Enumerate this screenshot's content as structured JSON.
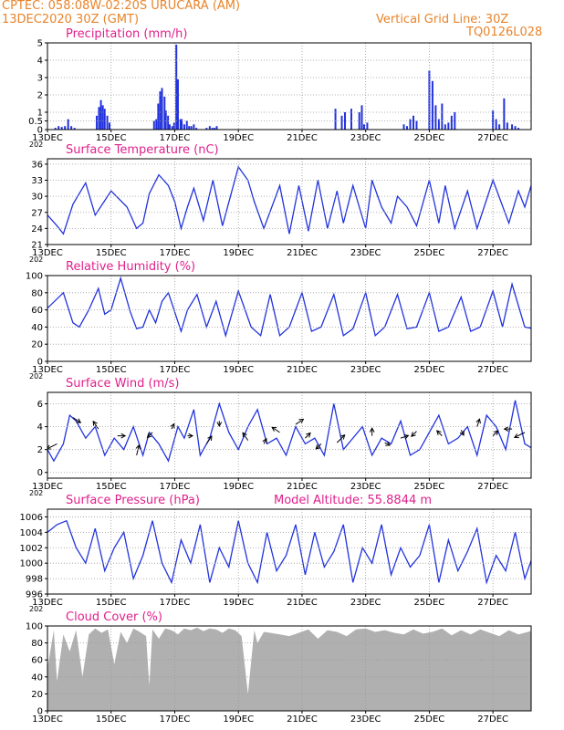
{
  "header": {
    "left_line1": "CPTEC:   058:08W-02:20S   URUCARA (AM)",
    "left_line2": "13DEC2020 30Z (GMT)",
    "right_line1": "Vertical Grid Line: 30Z",
    "right_line2": "TQ0126L028"
  },
  "colors": {
    "header": "#e8842a",
    "title": "#e0208c",
    "series": "#2233dd",
    "cloud": "#b0b0b0",
    "grid": "#999999"
  },
  "chart_data": [
    {
      "type": "bar",
      "title": "Precipitation (mm/h)",
      "ylim": [
        0,
        5
      ],
      "yticks": [
        "0",
        "0.5",
        "1",
        "2",
        "3",
        "4",
        "5"
      ],
      "ytick_values": [
        0,
        0.5,
        1,
        2,
        3,
        4,
        5
      ],
      "xticks": [
        "13DEC",
        "15DEC",
        "17DEC",
        "19DEC",
        "21DEC",
        "23DEC",
        "25DEC",
        "27DEC"
      ],
      "x_year_label": "202",
      "x": [
        0.25,
        0.35,
        0.45,
        0.55,
        0.65,
        0.75,
        0.85,
        1.55,
        1.62,
        1.68,
        1.74,
        1.8,
        1.88,
        1.95,
        3.35,
        3.42,
        3.48,
        3.54,
        3.6,
        3.68,
        3.72,
        3.79,
        3.84,
        3.92,
        3.98,
        4.05,
        4.1,
        4.18,
        4.22,
        4.3,
        4.38,
        4.45,
        4.52,
        4.6,
        4.68,
        5.0,
        5.1,
        5.18,
        5.25,
        5.32,
        9.05,
        9.25,
        9.35,
        9.55,
        9.8,
        9.88,
        9.95,
        10.05,
        11.2,
        11.3,
        11.4,
        11.5,
        11.6,
        12.0,
        12.1,
        12.2,
        12.3,
        12.4,
        12.5,
        12.6,
        12.7,
        12.8,
        14.0,
        14.1,
        14.2,
        14.35,
        14.45,
        14.6,
        14.7,
        14.8
      ],
      "values": [
        0.1,
        0.2,
        0.15,
        0.2,
        0.6,
        0.2,
        0.1,
        0.8,
        1.3,
        1.7,
        1.4,
        1.2,
        0.8,
        0.4,
        0.5,
        0.6,
        1.5,
        2.2,
        2.4,
        1.9,
        1.1,
        0.8,
        0.3,
        0.2,
        0.4,
        4.9,
        2.9,
        0.6,
        0.6,
        0.3,
        0.5,
        0.2,
        0.2,
        0.3,
        0.1,
        0.1,
        0.2,
        0.1,
        0.1,
        0.2,
        1.2,
        0.8,
        1.0,
        1.2,
        1.0,
        1.4,
        0.3,
        0.4,
        0.3,
        0.2,
        0.6,
        0.8,
        0.5,
        3.4,
        2.8,
        1.4,
        0.6,
        1.5,
        0.3,
        0.4,
        0.8,
        1.0,
        1.1,
        0.6,
        0.3,
        1.8,
        0.4,
        0.3,
        0.2,
        0.1
      ]
    },
    {
      "type": "line",
      "title": "Surface Temperature (nC)",
      "ylim": [
        21,
        37
      ],
      "yticks": [
        "21",
        "24",
        "27",
        "30",
        "33",
        "36"
      ],
      "ytick_values": [
        21,
        24,
        27,
        30,
        33,
        36
      ],
      "xticks": [
        "13DEC",
        "15DEC",
        "17DEC",
        "19DEC",
        "21DEC",
        "23DEC",
        "25DEC",
        "27DEC"
      ],
      "x_year_label": "202",
      "x": [
        0,
        0.3,
        0.5,
        0.8,
        1.2,
        1.5,
        2.0,
        2.5,
        2.8,
        3.0,
        3.2,
        3.5,
        3.8,
        4.0,
        4.2,
        4.4,
        4.6,
        4.9,
        5.2,
        5.5,
        6.0,
        6.3,
        6.5,
        6.8,
        7.3,
        7.6,
        7.9,
        8.2,
        8.5,
        8.8,
        9.1,
        9.3,
        9.6,
        10.0,
        10.2,
        10.5,
        10.8,
        11.0,
        11.3,
        11.6,
        12.0,
        12.3,
        12.5,
        12.8,
        13.2,
        13.5,
        14.0,
        14.5,
        14.8,
        15.0,
        15.2,
        15.5,
        15.8,
        16.0,
        16.2,
        16.5,
        16.8,
        17.0
      ],
      "values": [
        26.5,
        24.5,
        23,
        28.5,
        32.5,
        26.5,
        31,
        28,
        24,
        25,
        30.5,
        34,
        32,
        29,
        24,
        28,
        31.5,
        25.5,
        33,
        24.5,
        35.5,
        33,
        29,
        24,
        32,
        23,
        32,
        23.5,
        33,
        24,
        31,
        25,
        32,
        24,
        33,
        28,
        25,
        30,
        28,
        24.5,
        33,
        25,
        32,
        24,
        31,
        24,
        33,
        25,
        31,
        28,
        32,
        24,
        34,
        25,
        31,
        24,
        34.5,
        33
      ]
    },
    {
      "type": "line",
      "title": "Relative Humidity (%)",
      "ylim": [
        0,
        100
      ],
      "yticks": [
        "0",
        "20",
        "40",
        "60",
        "80",
        "100"
      ],
      "ytick_values": [
        0,
        20,
        40,
        60,
        80,
        100
      ],
      "xticks": [
        "13DEC",
        "15DEC",
        "17DEC",
        "19DEC",
        "21DEC",
        "23DEC",
        "25DEC",
        "27DEC"
      ],
      "x_year_label": "202",
      "x": [
        0,
        0.5,
        0.8,
        1.0,
        1.3,
        1.6,
        1.8,
        2.0,
        2.3,
        2.6,
        2.8,
        3.0,
        3.2,
        3.4,
        3.6,
        3.8,
        4.2,
        4.4,
        4.7,
        5.0,
        5.3,
        5.6,
        6.0,
        6.4,
        6.7,
        7.0,
        7.3,
        7.6,
        8.0,
        8.3,
        8.6,
        9.0,
        9.3,
        9.6,
        10.0,
        10.3,
        10.6,
        11.0,
        11.3,
        11.6,
        12.0,
        12.3,
        12.6,
        13.0,
        13.3,
        13.6,
        14.0,
        14.3,
        14.6,
        15.0,
        15.3,
        15.6,
        16.0,
        16.3,
        16.6,
        17.0
      ],
      "values": [
        62,
        80,
        45,
        40,
        60,
        85,
        55,
        60,
        97,
        58,
        38,
        40,
        60,
        45,
        70,
        80,
        35,
        60,
        78,
        40,
        70,
        30,
        82,
        40,
        30,
        78,
        30,
        40,
        80,
        35,
        40,
        78,
        30,
        38,
        80,
        30,
        40,
        78,
        38,
        40,
        80,
        35,
        40,
        75,
        35,
        40,
        82,
        40,
        90,
        40,
        38,
        60,
        70,
        35,
        60,
        35
      ]
    },
    {
      "type": "line",
      "title": "Surface Wind (m/s)",
      "ylim": [
        -0.5,
        7
      ],
      "yticks": [
        "0",
        "2",
        "4",
        "6"
      ],
      "ytick_values": [
        0,
        2,
        4,
        6
      ],
      "xticks": [
        "13DEC",
        "15DEC",
        "17DEC",
        "19DEC",
        "21DEC",
        "23DEC",
        "25DEC",
        "27DEC"
      ],
      "x_year_label": "202",
      "x": [
        0,
        0.2,
        0.5,
        0.7,
        0.9,
        1.2,
        1.5,
        1.8,
        2.1,
        2.4,
        2.7,
        3.0,
        3.2,
        3.5,
        3.8,
        4.1,
        4.3,
        4.6,
        4.8,
        5.1,
        5.4,
        5.7,
        6.0,
        6.3,
        6.6,
        6.9,
        7.2,
        7.5,
        7.8,
        8.1,
        8.4,
        8.7,
        9.0,
        9.3,
        9.6,
        9.9,
        10.2,
        10.5,
        10.8,
        11.1,
        11.4,
        11.7,
        12.0,
        12.3,
        12.6,
        12.9,
        13.2,
        13.5,
        13.8,
        14.1,
        14.4,
        14.7,
        15.0,
        15.3,
        15.6,
        15.9,
        16.2,
        16.5,
        16.8,
        17.0
      ],
      "values": [
        2,
        1,
        2.5,
        5,
        4.5,
        3,
        4,
        1.5,
        3,
        2,
        4,
        1.5,
        3.5,
        2.5,
        1,
        4,
        3,
        5.5,
        1.5,
        3,
        6,
        3.5,
        2,
        4,
        5.5,
        2.5,
        3,
        1.5,
        4,
        2.5,
        3,
        1.5,
        6,
        2,
        3,
        4,
        1.5,
        3,
        2.5,
        4.5,
        1.5,
        2,
        3.5,
        5,
        2.5,
        3,
        4,
        1.5,
        5,
        4,
        2,
        6.3,
        2.5,
        2,
        4,
        3,
        1.5,
        5.5,
        2,
        2
      ],
      "arrows": [
        [
          0.3,
          2.5,
          -0.4,
          -0.2
        ],
        [
          0.8,
          4.8,
          0.3,
          -0.2
        ],
        [
          1.6,
          3.8,
          -0.2,
          0.3
        ],
        [
          2.2,
          3.2,
          0.3,
          0
        ],
        [
          2.8,
          1.5,
          0.1,
          0.4
        ],
        [
          3.3,
          3.5,
          -0.2,
          -0.2
        ],
        [
          3.9,
          3.8,
          0.1,
          0.2
        ],
        [
          4.4,
          3.2,
          0.2,
          0
        ],
        [
          5.0,
          2.5,
          0.2,
          0.3
        ],
        [
          5.4,
          4.5,
          0,
          -0.2
        ],
        [
          6.3,
          2.8,
          -0.2,
          0.3
        ],
        [
          6.8,
          2.5,
          0.1,
          0.2
        ],
        [
          7.3,
          3.5,
          -0.3,
          0.2
        ],
        [
          7.8,
          4.2,
          0.3,
          0.2
        ],
        [
          8.1,
          3.0,
          0.2,
          0.2
        ],
        [
          8.6,
          2.5,
          -0.2,
          -0.2
        ],
        [
          9.1,
          2.6,
          0.3,
          0.3
        ],
        [
          10.2,
          3.2,
          0,
          0.3
        ],
        [
          10.6,
          2.6,
          0.2,
          -0.1
        ],
        [
          11.1,
          3.0,
          0.3,
          0.1
        ],
        [
          11.6,
          3.6,
          -0.2,
          -0.2
        ],
        [
          12.4,
          3.2,
          -0.2,
          0.2
        ],
        [
          13.0,
          3.7,
          0.1,
          -0.2
        ],
        [
          13.5,
          4.0,
          0.1,
          0.3
        ],
        [
          14.0,
          3.2,
          0.2,
          0.2
        ],
        [
          14.6,
          3.8,
          -0.3,
          0
        ],
        [
          15.0,
          3.5,
          -0.4,
          -0.2
        ],
        [
          15.6,
          3.6,
          0.3,
          0.2
        ],
        [
          16.4,
          2.8,
          -0.2,
          0.3
        ],
        [
          16.8,
          4.4,
          0.2,
          0.2
        ]
      ]
    },
    {
      "type": "line",
      "title": "Surface Pressure (hPa)",
      "annotation": "Model Altitude: 55.8844 m",
      "ylim": [
        996,
        1007
      ],
      "yticks": [
        "996",
        "998",
        "1000",
        "1002",
        "1004",
        "1006"
      ],
      "ytick_values": [
        996,
        998,
        1000,
        1002,
        1004,
        1006
      ],
      "xticks": [
        "13DEC",
        "15DEC",
        "17DEC",
        "19DEC",
        "21DEC",
        "23DEC",
        "25DEC",
        "27DEC"
      ],
      "x_year_label": "202",
      "x": [
        0,
        0.3,
        0.6,
        0.9,
        1.2,
        1.5,
        1.8,
        2.1,
        2.4,
        2.7,
        3.0,
        3.3,
        3.6,
        3.9,
        4.2,
        4.5,
        4.8,
        5.1,
        5.4,
        5.7,
        6.0,
        6.3,
        6.6,
        6.9,
        7.2,
        7.5,
        7.8,
        8.1,
        8.4,
        8.7,
        9.0,
        9.3,
        9.6,
        9.9,
        10.2,
        10.5,
        10.8,
        11.1,
        11.4,
        11.7,
        12.0,
        12.3,
        12.6,
        12.9,
        13.2,
        13.5,
        13.8,
        14.1,
        14.4,
        14.7,
        15.0,
        15.3,
        15.6,
        15.9,
        16.2,
        16.5,
        16.8,
        17.0
      ],
      "values": [
        1004,
        1005,
        1005.5,
        1002,
        1000,
        1004.5,
        999,
        1002,
        1004,
        998,
        1001,
        1005.5,
        1000,
        997.5,
        1003,
        1000,
        1005,
        997.5,
        1002,
        999.5,
        1005.5,
        1000,
        997.5,
        1004,
        999,
        1001,
        1005,
        998.5,
        1004,
        999.5,
        1001.5,
        1005,
        997.5,
        1002,
        1000,
        1005,
        998.5,
        1002,
        999.5,
        1001,
        1005,
        997.5,
        1003,
        999,
        1001.5,
        1004.5,
        997.5,
        1001,
        999,
        1004,
        998,
        1001.5,
        999.5,
        1003.5,
        996.5,
        1000.5,
        1004,
        998
      ]
    },
    {
      "type": "area",
      "title": "Cloud Cover (%)",
      "ylim": [
        0,
        100
      ],
      "yticks": [
        "0",
        "20",
        "40",
        "60",
        "80",
        "100"
      ],
      "ytick_values": [
        0,
        20,
        40,
        60,
        80,
        100
      ],
      "xticks": [
        "13DEC",
        "15DEC",
        "17DEC",
        "19DEC",
        "21DEC",
        "23DEC",
        "25DEC",
        "27DEC"
      ],
      "x": [
        0,
        0.2,
        0.3,
        0.5,
        0.7,
        0.9,
        1.1,
        1.3,
        1.5,
        1.7,
        1.9,
        2.1,
        2.3,
        2.5,
        2.7,
        2.9,
        3.1,
        3.2,
        3.3,
        3.5,
        3.7,
        3.9,
        4.1,
        4.3,
        4.5,
        4.7,
        4.9,
        5.1,
        5.3,
        5.5,
        5.7,
        5.9,
        6.1,
        6.3,
        6.5,
        6.6,
        6.8,
        7.0,
        7.3,
        7.6,
        7.9,
        8.2,
        8.5,
        8.8,
        9.1,
        9.4,
        9.7,
        10.0,
        10.3,
        10.6,
        10.9,
        11.2,
        11.5,
        11.8,
        12.1,
        12.4,
        12.7,
        13.0,
        13.3,
        13.6,
        13.9,
        14.2,
        14.5,
        14.8,
        15.1,
        15.4,
        15.7,
        16.0,
        16.3,
        16.6,
        16.9,
        17.0
      ],
      "values": [
        50,
        95,
        35,
        90,
        70,
        95,
        40,
        90,
        97,
        92,
        96,
        55,
        93,
        80,
        97,
        93,
        88,
        30,
        96,
        85,
        97,
        95,
        90,
        97,
        95,
        98,
        94,
        97,
        96,
        92,
        97,
        95,
        88,
        20,
        95,
        80,
        93,
        92,
        90,
        88,
        92,
        96,
        85,
        95,
        93,
        88,
        96,
        97,
        93,
        95,
        92,
        90,
        96,
        91,
        93,
        97,
        89,
        95,
        90,
        96,
        92,
        88,
        95,
        90,
        93,
        97,
        92,
        88,
        90,
        95,
        85,
        70
      ]
    }
  ]
}
